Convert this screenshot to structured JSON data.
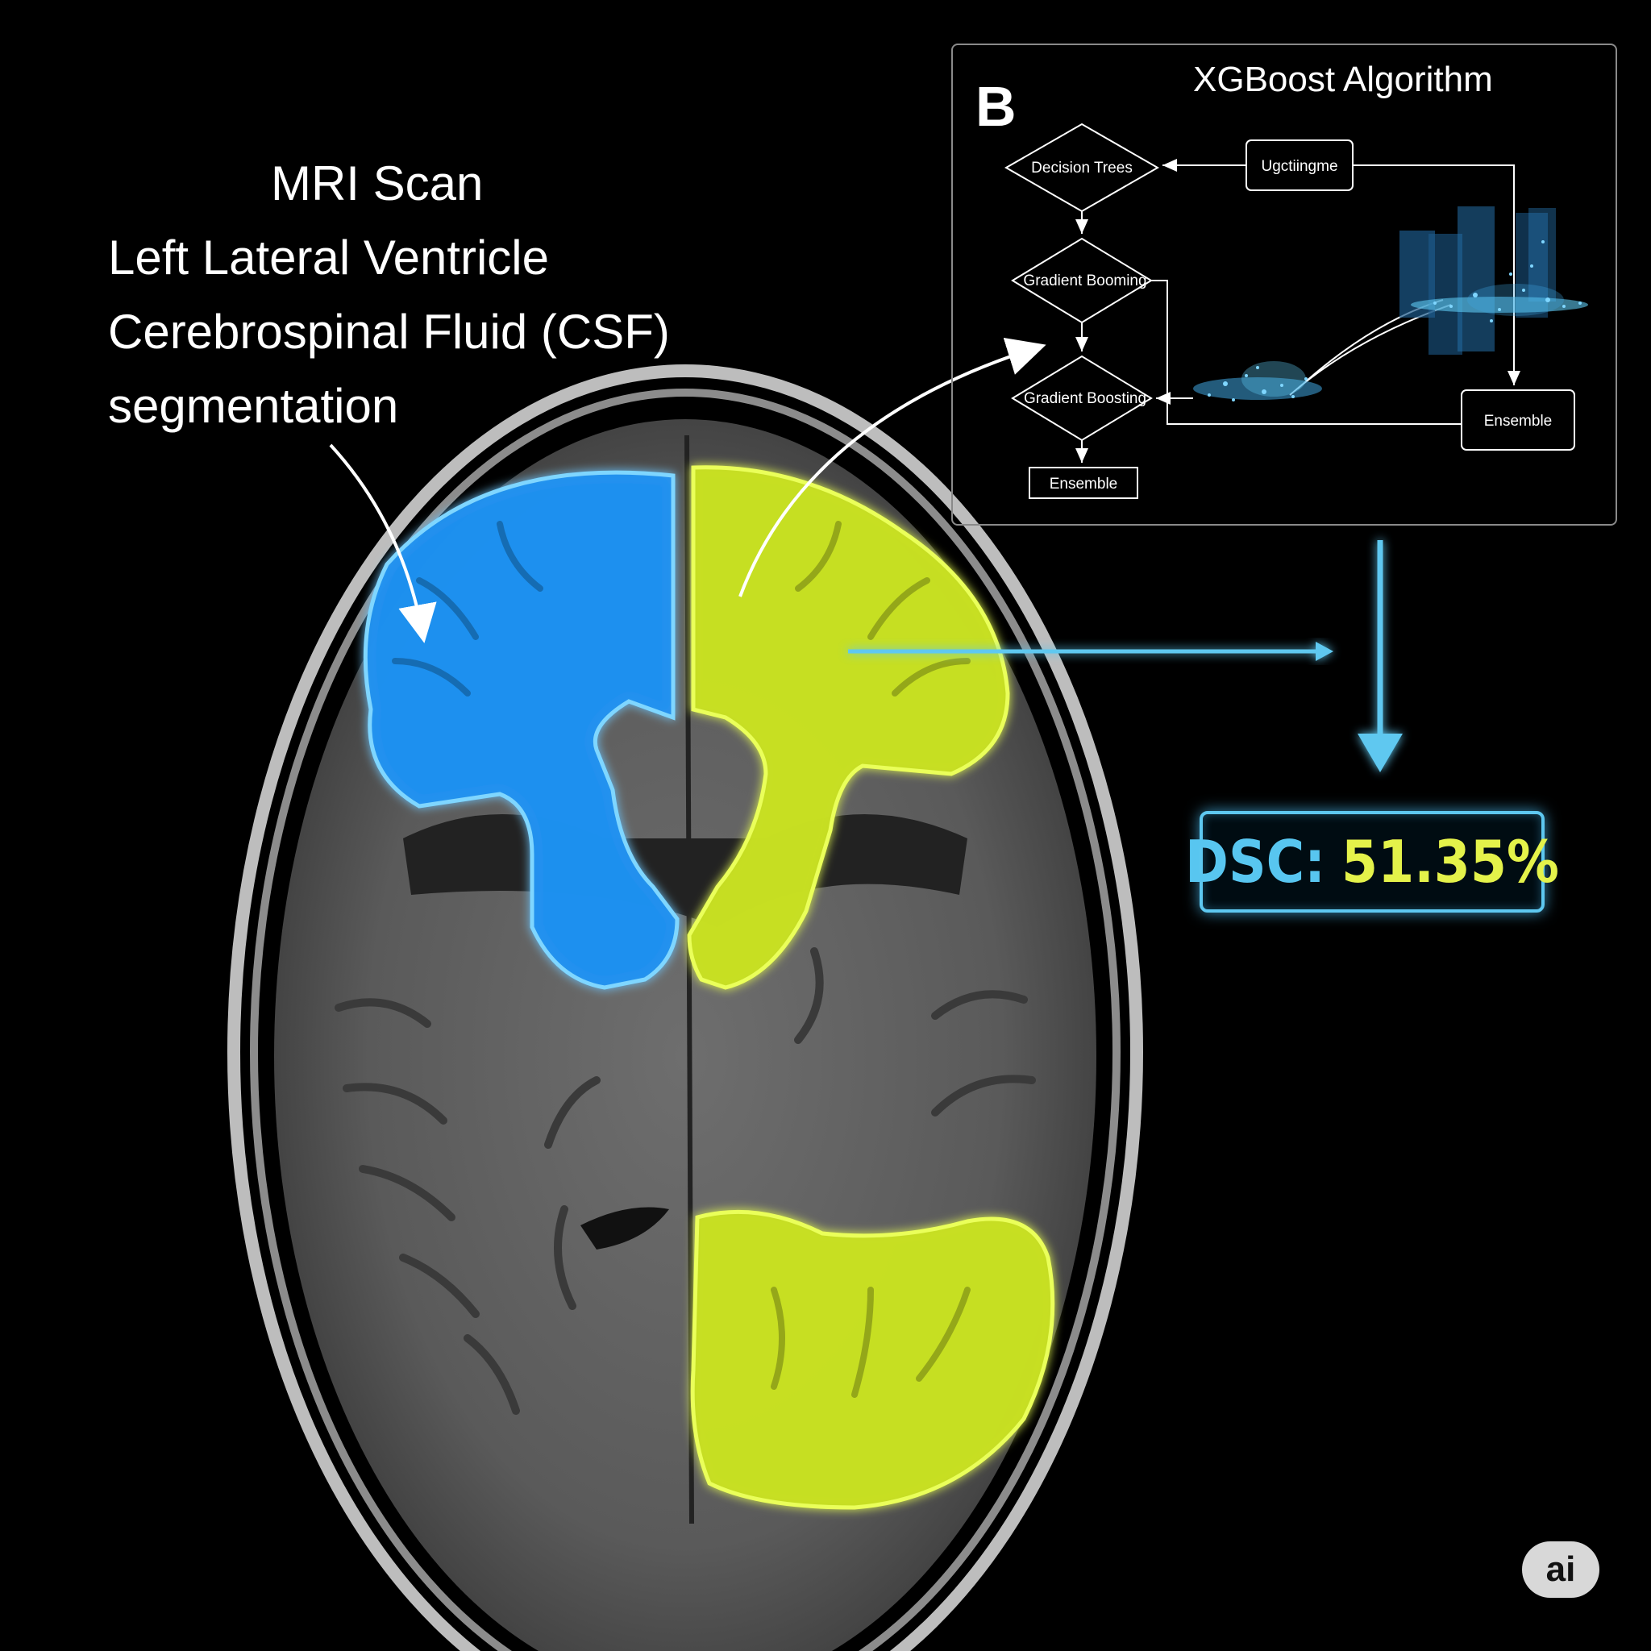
{
  "caption": {
    "line1": "MRI Scan",
    "line2": "Left Lateral Ventricle",
    "line3": "Cerebrospinal Fluid (CSF)",
    "line4": "segmentation"
  },
  "panel": {
    "letter": "B",
    "title": "XGBoost Algorithm",
    "nodes": {
      "decision_trees": "Decision Trees",
      "gradient_boosting_1": "Gradient Booming",
      "gradient_boosting_2": "Gradient Boosting",
      "ensemble_bottom": "Ensemble",
      "updating": "Ugctiingme",
      "ensemble_right": "Ensemble"
    }
  },
  "metric": {
    "label": "DSC:",
    "value": "51.35%"
  },
  "badge": "ai",
  "colors": {
    "background": "#000000",
    "segment_blue": "#1e90f0",
    "segment_green": "#c8e020",
    "accent_cyan": "#5ec8f0",
    "value_yellow": "#e4f24a"
  }
}
